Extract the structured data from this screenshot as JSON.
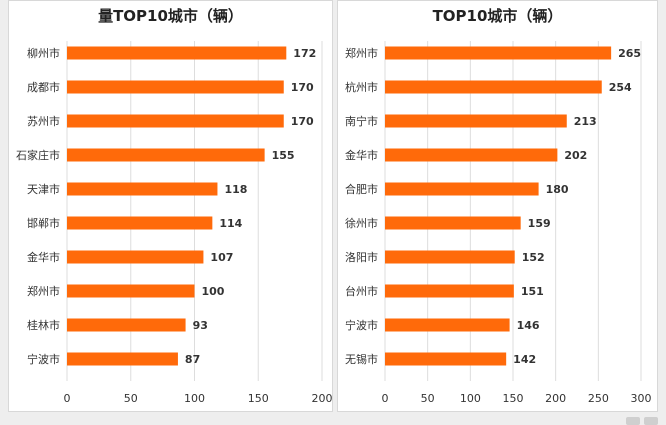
{
  "chart_data": [
    {
      "type": "bar",
      "orientation": "horizontal",
      "title_line1": "",
      "title_line2": "量TOP10城市（辆）",
      "categories": [
        "柳州市",
        "成都市",
        "苏州市",
        "石家庄市",
        "天津市",
        "邯郸市",
        "金华市",
        "郑州市",
        "桂林市",
        "宁波市"
      ],
      "values": [
        172,
        170,
        170,
        155,
        118,
        114,
        107,
        100,
        93,
        87
      ],
      "xlim": [
        0,
        200
      ],
      "xticks": [
        0,
        50,
        100,
        150,
        200
      ],
      "grid": true,
      "bar_color": "#ff6a0a",
      "legend": "none"
    },
    {
      "type": "bar",
      "orientation": "horizontal",
      "title_line1": "",
      "title_line2": "TOP10城市（辆）",
      "categories": [
        "郑州市",
        "杭州市",
        "南宁市",
        "金华市",
        "合肥市",
        "徐州市",
        "洛阳市",
        "台州市",
        "宁波市",
        "无锡市"
      ],
      "values": [
        265,
        254,
        213,
        202,
        180,
        159,
        152,
        151,
        146,
        142
      ],
      "xlim": [
        0,
        300
      ],
      "xticks": [
        0,
        50,
        100,
        150,
        200,
        250,
        300
      ],
      "grid": true,
      "bar_color": "#ff6a0a",
      "legend": "none"
    }
  ],
  "colors": {
    "bar": "#ff6a0a",
    "grid": "#dddddd",
    "text": "#333333"
  }
}
